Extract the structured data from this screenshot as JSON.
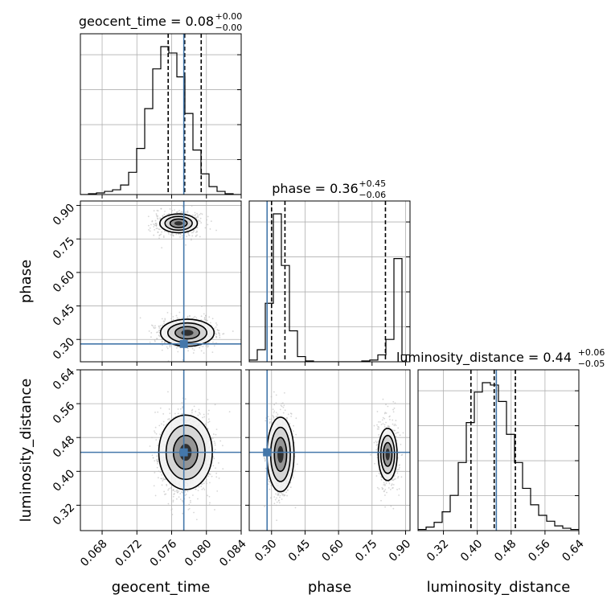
{
  "chart_data": {
    "type": "corner",
    "parameters": [
      {
        "name": "geocent_time",
        "range": [
          0.0655,
          0.084
        ],
        "ticks": [
          0.068,
          0.072,
          0.076,
          0.08,
          0.084
        ],
        "tick_labels": [
          "0.068",
          "0.072",
          "0.076",
          "0.080",
          "0.084"
        ]
      },
      {
        "name": "phase",
        "range": [
          0.2,
          0.92
        ],
        "ticks": [
          0.3,
          0.45,
          0.6,
          0.75,
          0.9
        ],
        "tick_labels": [
          "0.30",
          "0.45",
          "0.60",
          "0.75",
          "0.90"
        ]
      },
      {
        "name": "luminosity_distance",
        "range": [
          0.26,
          0.64
        ],
        "ticks": [
          0.32,
          0.4,
          0.48,
          0.56,
          0.64
        ],
        "tick_labels": [
          "0.32",
          "0.40",
          "0.48",
          "0.56",
          "0.64"
        ]
      }
    ],
    "titles": [
      {
        "param": "geocent_time",
        "prefix": "geocent_time = 0.08",
        "plus": "+0.00",
        "minus": "−0.00"
      },
      {
        "param": "phase",
        "prefix": "phase = 0.36",
        "plus": "+0.45",
        "minus": "−0.06"
      },
      {
        "param": "luminosity_distance",
        "prefix": "luminosity_distance = 0.44",
        "plus": "+0.06",
        "minus": "−0.05"
      }
    ],
    "truths": [
      0.0774,
      0.28,
      0.445
    ],
    "quantiles": [
      [
        0.0756,
        0.0775,
        0.0794
      ],
      [
        0.3,
        0.36,
        0.81
      ],
      [
        0.385,
        0.44,
        0.49
      ]
    ],
    "histograms": [
      {
        "param": "geocent_time",
        "bins": 20,
        "counts": [
          0,
          1,
          2,
          4,
          6,
          12,
          28,
          58,
          108,
          158,
          186,
          178,
          148,
          102,
          56,
          26,
          10,
          4,
          1,
          0
        ]
      },
      {
        "param": "phase",
        "bins": 20,
        "counts": [
          2,
          14,
          68,
          172,
          112,
          36,
          6,
          1,
          0,
          0,
          0,
          0,
          0,
          0,
          1,
          2,
          8,
          26,
          120,
          8
        ]
      },
      {
        "param": "luminosity_distance",
        "bins": 20,
        "counts": [
          1,
          3,
          7,
          16,
          30,
          58,
          92,
          118,
          126,
          124,
          110,
          82,
          58,
          36,
          22,
          13,
          8,
          4,
          2,
          1
        ]
      }
    ],
    "modes_2d": [
      {
        "x": "geocent_time",
        "y": "phase",
        "centers": [
          [
            0.0778,
            0.33
          ],
          [
            0.0768,
            0.82
          ]
        ],
        "weights": [
          0.75,
          0.25
        ]
      },
      {
        "x": "geocent_time",
        "y": "luminosity_distance",
        "centers": [
          [
            0.0776,
            0.445
          ]
        ],
        "weights": [
          1.0
        ]
      },
      {
        "x": "phase",
        "y": "luminosity_distance",
        "centers": [
          [
            0.34,
            0.44
          ],
          [
            0.82,
            0.44
          ]
        ],
        "weights": [
          0.75,
          0.25
        ]
      }
    ],
    "grid": true,
    "colors": {
      "truth": "#4477aa",
      "hist": "#000000",
      "quantile": "#000000",
      "density": "#000000",
      "points": "#bbbbbb",
      "grid": "#b0b0b0"
    }
  }
}
